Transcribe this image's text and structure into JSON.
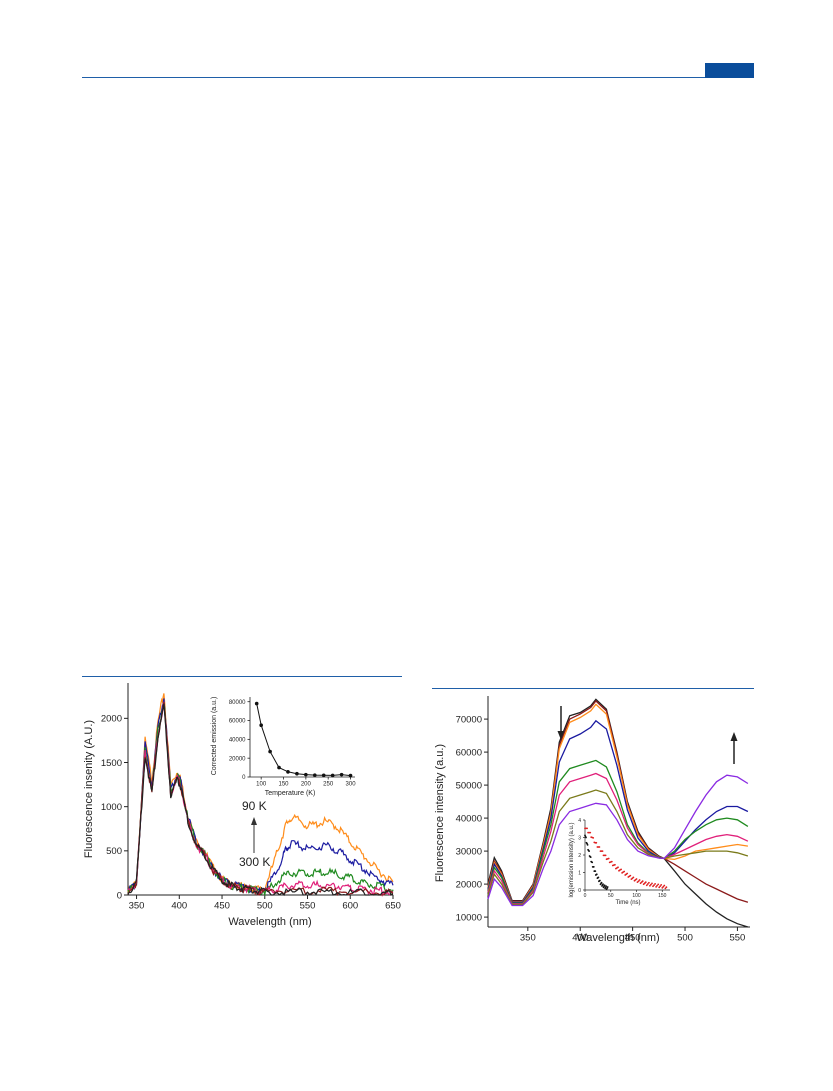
{
  "page": {
    "colors": {
      "accent": "#1f5fa8",
      "header_tab": "#0a4d9b"
    }
  },
  "chart_data": [
    {
      "type": "line",
      "xlabel": "Wavelength (nm)",
      "ylabel": "Fluorescence insenity (A.U.)",
      "xlim": [
        340,
        650
      ],
      "ylim": [
        0,
        2400
      ],
      "xticks": [
        350,
        400,
        450,
        500,
        550,
        600,
        650
      ],
      "yticks": [
        0,
        500,
        1000,
        1500,
        2000
      ],
      "annotations": {
        "top": "90 K",
        "bottom": "300 K"
      },
      "series": [
        {
          "color": "#ff8c1a",
          "x": [
            340,
            350,
            360,
            368,
            375,
            382,
            390,
            398,
            402,
            410,
            420,
            430,
            440,
            450,
            460,
            470,
            480,
            490,
            500,
            510,
            520,
            525,
            530,
            540,
            550,
            560,
            570,
            580,
            590,
            600,
            610,
            620,
            630,
            640,
            650
          ],
          "y": [
            30,
            150,
            1750,
            1300,
            1950,
            2300,
            1250,
            1400,
            1300,
            900,
            600,
            480,
            300,
            180,
            120,
            100,
            80,
            60,
            80,
            350,
            650,
            800,
            870,
            850,
            780,
            800,
            830,
            800,
            720,
            600,
            500,
            400,
            300,
            220,
            150
          ]
        },
        {
          "color": "#1a1aa0",
          "x": [
            340,
            350,
            360,
            368,
            375,
            382,
            390,
            398,
            402,
            410,
            420,
            430,
            440,
            450,
            460,
            470,
            480,
            490,
            500,
            510,
            520,
            525,
            530,
            540,
            550,
            560,
            570,
            580,
            590,
            600,
            610,
            620,
            630,
            640,
            650
          ],
          "y": [
            30,
            150,
            1700,
            1250,
            1900,
            2250,
            1200,
            1380,
            1280,
            880,
            590,
            470,
            290,
            175,
            115,
            95,
            75,
            55,
            60,
            200,
            400,
            520,
            580,
            560,
            520,
            540,
            560,
            530,
            470,
            400,
            340,
            270,
            200,
            150,
            110
          ]
        },
        {
          "color": "#1f8a1f",
          "x": [
            340,
            350,
            360,
            368,
            375,
            382,
            390,
            398,
            402,
            410,
            420,
            430,
            440,
            450,
            460,
            470,
            480,
            490,
            500,
            510,
            520,
            530,
            540,
            550,
            560,
            570,
            580,
            590,
            600,
            610,
            620,
            630,
            640,
            650
          ],
          "y": [
            30,
            150,
            1650,
            1200,
            1850,
            2200,
            1180,
            1350,
            1250,
            860,
            580,
            460,
            285,
            170,
            110,
            90,
            70,
            50,
            45,
            110,
            200,
            250,
            255,
            240,
            250,
            260,
            245,
            220,
            190,
            160,
            130,
            100,
            80,
            60
          ]
        },
        {
          "color": "#e0207a",
          "x": [
            340,
            350,
            360,
            368,
            375,
            382,
            390,
            398,
            402,
            410,
            420,
            430,
            440,
            450,
            460,
            470,
            480,
            490,
            500,
            510,
            520,
            530,
            540,
            550,
            560,
            570,
            580,
            590,
            600,
            610,
            620,
            630,
            640,
            650
          ],
          "y": [
            30,
            150,
            1620,
            1180,
            1820,
            2180,
            1160,
            1330,
            1230,
            850,
            570,
            455,
            280,
            168,
            108,
            88,
            68,
            48,
            40,
            60,
            90,
            110,
            110,
            105,
            108,
            110,
            105,
            95,
            85,
            70,
            60,
            50,
            40,
            30
          ]
        },
        {
          "color": "#8b1a1a",
          "x": [
            340,
            350,
            360,
            368,
            375,
            382,
            390,
            398,
            402,
            410,
            420,
            430,
            440,
            450,
            460,
            470,
            480,
            490,
            500,
            520,
            540,
            560,
            580,
            600,
            620,
            640,
            650
          ],
          "y": [
            30,
            150,
            1600,
            1160,
            1800,
            2160,
            1150,
            1320,
            1220,
            840,
            565,
            450,
            278,
            166,
            106,
            86,
            66,
            46,
            35,
            45,
            50,
            50,
            48,
            40,
            30,
            22,
            18
          ]
        },
        {
          "color": "#222222",
          "x": [
            340,
            350,
            360,
            368,
            375,
            382,
            390,
            398,
            402,
            410,
            420,
            430,
            440,
            450,
            460,
            470,
            480,
            490,
            500,
            520,
            540,
            560,
            580,
            600,
            620,
            640,
            650
          ],
          "y": [
            30,
            150,
            1580,
            1150,
            1780,
            2150,
            1140,
            1310,
            1210,
            830,
            560,
            445,
            275,
            165,
            105,
            85,
            65,
            45,
            30,
            30,
            32,
            32,
            30,
            26,
            22,
            18,
            15
          ]
        }
      ],
      "inset": {
        "type": "line",
        "xlabel": "Temperature (K)",
        "ylabel": "Corrected emission (a.u.)",
        "xlim": [
          75,
          310
        ],
        "ylim": [
          0,
          85000
        ],
        "xticks": [
          100,
          150,
          200,
          250,
          300
        ],
        "yticks": [
          0,
          20000,
          40000,
          60000,
          80000
        ],
        "x": [
          90,
          100,
          120,
          140,
          160,
          180,
          200,
          220,
          240,
          260,
          280,
          300
        ],
        "y": [
          78000,
          55000,
          27000,
          10000,
          5500,
          3500,
          2500,
          2000,
          1800,
          1700,
          2500,
          1500
        ]
      }
    },
    {
      "type": "line",
      "xlabel": "Wavelength (nm)",
      "ylabel": "Fluorescence intensity (a.u.)",
      "xlim": [
        312,
        562
      ],
      "ylim": [
        7000,
        77000
      ],
      "xticks": [
        350,
        400,
        450,
        500,
        550
      ],
      "yticks": [
        10000,
        20000,
        30000,
        40000,
        50000,
        60000,
        70000
      ],
      "series": [
        {
          "color": "#222222",
          "x": [
            312,
            318,
            325,
            335,
            345,
            355,
            365,
            372,
            380,
            390,
            400,
            410,
            415,
            425,
            435,
            445,
            455,
            465,
            475,
            480,
            490,
            500,
            510,
            520,
            530,
            540,
            550,
            560
          ],
          "y": [
            20000,
            28000,
            24000,
            15000,
            15000,
            20000,
            33000,
            43000,
            63000,
            71000,
            72000,
            74000,
            76000,
            73000,
            60000,
            45000,
            36000,
            31000,
            28500,
            27800,
            24000,
            20000,
            17000,
            14000,
            11500,
            9500,
            8000,
            7000
          ]
        },
        {
          "color": "#8b1a1a",
          "x": [
            312,
            318,
            325,
            335,
            345,
            355,
            365,
            372,
            380,
            390,
            400,
            410,
            415,
            425,
            435,
            445,
            455,
            465,
            475,
            480,
            490,
            500,
            510,
            520,
            530,
            540,
            550,
            560
          ],
          "y": [
            19500,
            27000,
            23500,
            14800,
            14800,
            19800,
            32500,
            42000,
            62000,
            70000,
            71500,
            73500,
            75500,
            72500,
            59500,
            44500,
            35500,
            30800,
            28300,
            27800,
            26000,
            24000,
            22000,
            20000,
            18500,
            17000,
            15500,
            14500
          ]
        },
        {
          "color": "#ff8c1a",
          "x": [
            312,
            318,
            325,
            335,
            345,
            355,
            365,
            372,
            380,
            390,
            400,
            410,
            415,
            425,
            435,
            445,
            455,
            465,
            475,
            480,
            490,
            500,
            510,
            520,
            530,
            540,
            550,
            560
          ],
          "y": [
            19000,
            26500,
            23000,
            14600,
            14600,
            19500,
            32000,
            41500,
            61000,
            69000,
            70500,
            72500,
            74500,
            71500,
            58500,
            44000,
            35000,
            30500,
            28200,
            27800,
            27500,
            28500,
            30000,
            30500,
            31000,
            31500,
            32000,
            31500
          ]
        },
        {
          "color": "#1a1aa0",
          "x": [
            312,
            318,
            325,
            335,
            345,
            355,
            365,
            372,
            380,
            390,
            400,
            410,
            415,
            425,
            435,
            445,
            455,
            465,
            475,
            480,
            490,
            500,
            510,
            520,
            530,
            540,
            550,
            560
          ],
          "y": [
            18500,
            26000,
            22500,
            14500,
            14500,
            19000,
            31000,
            40000,
            57000,
            64000,
            65500,
            67500,
            69500,
            67000,
            56000,
            42500,
            34000,
            30000,
            28100,
            27800,
            29500,
            33000,
            36500,
            39500,
            42000,
            43500,
            43500,
            42000
          ]
        },
        {
          "color": "#1f8a1f",
          "x": [
            312,
            318,
            325,
            335,
            345,
            355,
            365,
            372,
            380,
            390,
            400,
            410,
            415,
            425,
            435,
            445,
            455,
            465,
            475,
            480,
            490,
            500,
            510,
            520,
            530,
            540,
            550,
            560
          ],
          "y": [
            18000,
            25000,
            22000,
            14200,
            14200,
            18500,
            30000,
            38000,
            51000,
            55000,
            56000,
            57000,
            57500,
            55500,
            48000,
            38000,
            32500,
            29500,
            28000,
            27800,
            30000,
            33500,
            36000,
            38000,
            39500,
            40000,
            39500,
            37500
          ]
        },
        {
          "color": "#e0207a",
          "x": [
            312,
            318,
            325,
            335,
            345,
            355,
            365,
            372,
            380,
            390,
            400,
            410,
            415,
            425,
            435,
            445,
            455,
            465,
            475,
            480,
            490,
            500,
            510,
            520,
            530,
            540,
            550,
            560
          ],
          "y": [
            17500,
            24000,
            21000,
            14000,
            14000,
            18000,
            28500,
            36000,
            47000,
            51000,
            52000,
            53000,
            53500,
            52000,
            45500,
            37000,
            32000,
            29200,
            27900,
            27800,
            29000,
            30500,
            32000,
            33500,
            34500,
            35000,
            34500,
            33000
          ]
        },
        {
          "color": "#7a7a1a",
          "x": [
            312,
            318,
            325,
            335,
            345,
            355,
            365,
            372,
            380,
            390,
            400,
            410,
            415,
            425,
            435,
            445,
            455,
            465,
            475,
            480,
            490,
            500,
            510,
            520,
            530,
            540,
            550,
            560
          ],
          "y": [
            16500,
            23000,
            20000,
            13800,
            13800,
            17500,
            27000,
            33000,
            42000,
            46000,
            47000,
            48000,
            48500,
            47500,
            42000,
            35000,
            31000,
            29000,
            27900,
            27800,
            28500,
            29000,
            29500,
            30000,
            30000,
            30000,
            29500,
            28500
          ]
        },
        {
          "color": "#8a2be2",
          "x": [
            312,
            318,
            325,
            335,
            345,
            355,
            365,
            372,
            380,
            390,
            400,
            410,
            415,
            425,
            435,
            445,
            455,
            465,
            475,
            480,
            490,
            500,
            510,
            520,
            530,
            540,
            550,
            560
          ],
          "y": [
            15500,
            21500,
            19000,
            13500,
            13500,
            16500,
            25000,
            30000,
            38000,
            42000,
            43000,
            44000,
            44500,
            44000,
            39500,
            33500,
            30000,
            28600,
            27900,
            27800,
            31000,
            36500,
            42000,
            47000,
            51000,
            53000,
            52500,
            50500
          ]
        }
      ],
      "inset": {
        "type": "scatter",
        "xlabel": "Time (ns)",
        "ylabel": "log(emission intensity) (a.u.)",
        "xlim": [
          0,
          165
        ],
        "ylim": [
          0,
          4
        ],
        "xticks": [
          0,
          50,
          100,
          150
        ],
        "yticks": [
          0,
          1,
          2,
          3,
          4
        ],
        "series": [
          {
            "color": "#111111",
            "x": [
              0,
              5,
              10,
              15,
              20,
              25,
              30,
              35,
              40,
              45
            ],
            "y": [
              3.2,
              2.5,
              1.9,
              1.4,
              1.0,
              0.7,
              0.4,
              0.25,
              0.15,
              0.08
            ]
          },
          {
            "color": "#e02020",
            "x": [
              0,
              10,
              20,
              30,
              40,
              50,
              60,
              70,
              80,
              90,
              100,
              110,
              120,
              130,
              140,
              150,
              160
            ],
            "y": [
              3.6,
              3.2,
              2.7,
              2.3,
              1.9,
              1.6,
              1.3,
              1.1,
              0.9,
              0.7,
              0.55,
              0.45,
              0.35,
              0.3,
              0.25,
              0.2,
              0.15
            ]
          }
        ]
      }
    }
  ]
}
